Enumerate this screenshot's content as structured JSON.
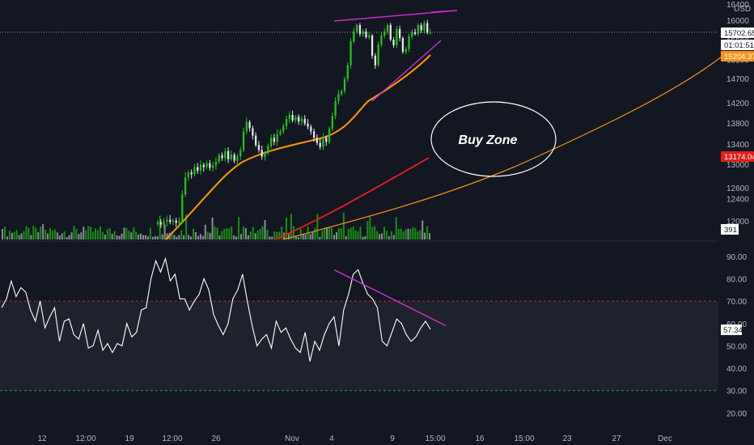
{
  "chart_data": [
    {
      "type": "candlestick",
      "title": "",
      "y_unit": "USD",
      "ylim": [
        11700,
        16400
      ],
      "y_ticks": [
        12000,
        12400,
        12600,
        13000,
        13400,
        13800,
        14200,
        14700,
        15100,
        15500,
        16000,
        16400
      ],
      "x_ticks": [
        "12",
        "12:00",
        "19",
        "12:00",
        "26",
        "Nov",
        "4",
        "9",
        "15:00",
        "16",
        "15:00",
        "23",
        "27",
        "Dec"
      ],
      "price_labels": [
        {
          "value": "15702.65",
          "color": "#ffffff"
        },
        {
          "value": "01:01:51",
          "color": "#ffffff"
        },
        {
          "value": "15204.37",
          "color": "#f7931a"
        },
        {
          "value": "13174.04",
          "color": "#e0201b"
        }
      ],
      "volume_label": "391",
      "current_price": 15702.65,
      "candles_open_close": [
        [
          11950,
          11980
        ],
        [
          11980,
          11940
        ],
        [
          11940,
          11990
        ],
        [
          11990,
          12020
        ],
        [
          12020,
          11985
        ],
        [
          11985,
          12005
        ],
        [
          12005,
          11970
        ],
        [
          11970,
          12000
        ],
        [
          12000,
          12480
        ],
        [
          12480,
          12780
        ],
        [
          12780,
          12860
        ],
        [
          12860,
          12830
        ],
        [
          12830,
          12950
        ],
        [
          12950,
          12890
        ],
        [
          12890,
          12990
        ],
        [
          12990,
          12950
        ],
        [
          12950,
          13020
        ],
        [
          13020,
          12940
        ],
        [
          12940,
          12980
        ],
        [
          12980,
          13050
        ],
        [
          13050,
          13180
        ],
        [
          13180,
          13120
        ],
        [
          13120,
          13260
        ],
        [
          13260,
          13100
        ],
        [
          13100,
          13190
        ],
        [
          13190,
          13070
        ],
        [
          13070,
          13160
        ],
        [
          13160,
          13280
        ],
        [
          13280,
          13640
        ],
        [
          13640,
          13820
        ],
        [
          13820,
          13700
        ],
        [
          13700,
          13560
        ],
        [
          13560,
          13380
        ],
        [
          13380,
          13280
        ],
        [
          13280,
          13150
        ],
        [
          13150,
          13220
        ],
        [
          13220,
          13360
        ],
        [
          13360,
          13520
        ],
        [
          13520,
          13440
        ],
        [
          13440,
          13590
        ],
        [
          13590,
          13640
        ],
        [
          13640,
          13740
        ],
        [
          13740,
          13880
        ],
        [
          13880,
          13960
        ],
        [
          13960,
          13850
        ],
        [
          13850,
          13920
        ],
        [
          13920,
          13830
        ],
        [
          13830,
          13880
        ],
        [
          13880,
          13790
        ],
        [
          13790,
          13730
        ],
        [
          13730,
          13640
        ],
        [
          13640,
          13520
        ],
        [
          13520,
          13420
        ],
        [
          13420,
          13340
        ],
        [
          13340,
          13520
        ],
        [
          13520,
          13440
        ],
        [
          13440,
          13690
        ],
        [
          13690,
          13940
        ],
        [
          13940,
          14240
        ],
        [
          14240,
          14380
        ],
        [
          14380,
          14440
        ],
        [
          14440,
          14690
        ],
        [
          14690,
          14980
        ],
        [
          14980,
          15480
        ],
        [
          15480,
          15720
        ],
        [
          15720,
          15880
        ],
        [
          15880,
          15660
        ],
        [
          15660,
          15720
        ],
        [
          15720,
          15580
        ],
        [
          15580,
          15620
        ],
        [
          15620,
          15180
        ],
        [
          15180,
          14980
        ],
        [
          14980,
          15410
        ],
        [
          15410,
          15620
        ],
        [
          15620,
          15720
        ],
        [
          15720,
          15880
        ],
        [
          15880,
          15520
        ],
        [
          15520,
          15400
        ],
        [
          15400,
          15780
        ],
        [
          15780,
          15560
        ],
        [
          15560,
          15260
        ],
        [
          15260,
          15320
        ],
        [
          15320,
          15600
        ],
        [
          15600,
          15700
        ],
        [
          15700,
          15660
        ],
        [
          15660,
          15880
        ],
        [
          15880,
          15750
        ],
        [
          15750,
          15930
        ],
        [
          15930,
          15690
        ],
        [
          15690,
          15702.65
        ]
      ],
      "rsi": {
        "ylim": [
          10,
          95
        ],
        "y_ticks": [
          20,
          30,
          40,
          50,
          60,
          70,
          80,
          90
        ],
        "overbought": 70,
        "oversold": 30,
        "current_label": "57.34",
        "values": [
          67,
          71,
          79,
          72,
          76,
          74,
          66,
          61,
          70,
          58,
          63,
          67,
          52,
          61,
          62,
          55,
          53,
          60,
          49,
          50,
          57,
          48,
          51,
          47,
          51,
          50,
          60,
          54,
          56,
          66,
          67,
          80,
          88,
          83,
          89,
          79,
          82,
          71,
          71,
          66,
          70,
          73,
          80,
          75,
          64,
          59,
          55,
          60,
          71,
          75,
          82,
          70,
          59,
          50,
          53,
          55,
          49,
          61,
          56,
          58,
          53,
          49,
          47,
          56,
          43,
          52,
          48,
          55,
          60,
          63,
          50,
          66,
          73,
          82,
          84,
          78,
          73,
          71,
          67,
          52,
          50,
          56,
          62,
          60,
          55,
          52,
          54,
          58,
          61,
          57.34
        ]
      }
    }
  ],
  "annotations": {
    "buy_zone_label": "Buy Zone"
  },
  "colors": {
    "background": "#131722",
    "candle_up": "#26c11b",
    "candle_down": "#e6e6e6",
    "ma_fast": "#ff9800",
    "ma_slow": "#d81f1f",
    "ma_long": "#f7931a",
    "trendline": "#c42ec4",
    "rsi_line": "#ffffff",
    "grid_text": "#b2b5be"
  }
}
